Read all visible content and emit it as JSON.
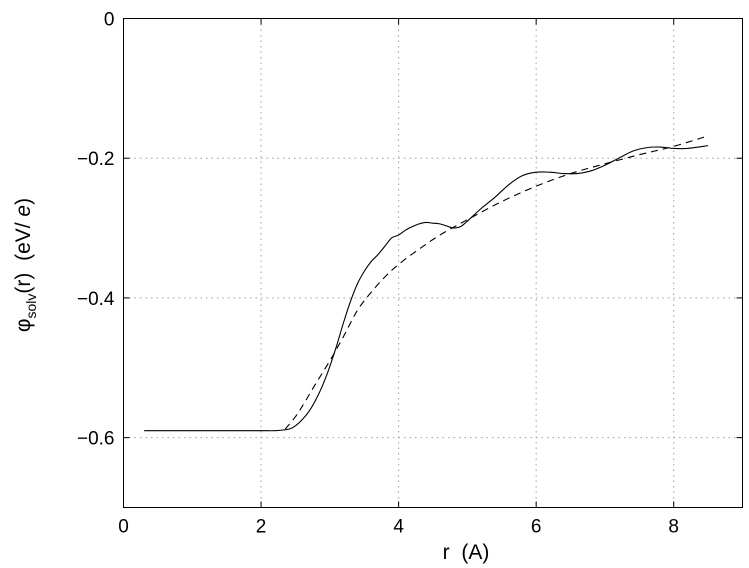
{
  "chart_data": {
    "type": "line",
    "xlabel": "r  (A)",
    "ylabel": {
      "prefix": "φ",
      "subscript": "solv",
      "middle": "(r)  (eV/ ",
      "italic": "e",
      "suffix": ")"
    },
    "xlim": [
      0,
      9
    ],
    "ylim": [
      -0.7,
      0
    ],
    "xticks": [
      0,
      2,
      4,
      6,
      8
    ],
    "yticks": [
      0,
      -0.2,
      -0.4,
      -0.6
    ],
    "xtick_labels": [
      "0",
      "2",
      "4",
      "6",
      "8"
    ],
    "ytick_labels": [
      "0",
      "−0.2",
      "−0.4",
      "−0.6"
    ],
    "grid": true,
    "series": [
      {
        "style": "solid",
        "x": [
          0.3,
          1.0,
          1.5,
          2.0,
          2.2,
          2.4,
          2.5,
          2.6,
          2.7,
          2.8,
          2.9,
          3.0,
          3.1,
          3.2,
          3.3,
          3.4,
          3.5,
          3.6,
          3.7,
          3.8,
          3.9,
          4.0,
          4.1,
          4.2,
          4.3,
          4.4,
          4.5,
          4.6,
          4.7,
          4.8,
          4.9,
          5.0,
          5.2,
          5.4,
          5.6,
          5.8,
          6.0,
          6.2,
          6.4,
          6.6,
          6.8,
          7.0,
          7.2,
          7.4,
          7.6,
          7.8,
          8.0,
          8.2,
          8.5
        ],
        "y": [
          -0.59,
          -0.59,
          -0.59,
          -0.59,
          -0.59,
          -0.588,
          -0.583,
          -0.574,
          -0.562,
          -0.545,
          -0.524,
          -0.498,
          -0.468,
          -0.435,
          -0.405,
          -0.38,
          -0.362,
          -0.348,
          -0.338,
          -0.326,
          -0.314,
          -0.31,
          -0.303,
          -0.298,
          -0.294,
          -0.292,
          -0.293,
          -0.294,
          -0.297,
          -0.3,
          -0.298,
          -0.29,
          -0.272,
          -0.256,
          -0.238,
          -0.225,
          -0.22,
          -0.22,
          -0.222,
          -0.222,
          -0.218,
          -0.21,
          -0.2,
          -0.19,
          -0.185,
          -0.184,
          -0.186,
          -0.186,
          -0.182
        ]
      },
      {
        "style": "dashed",
        "x": [
          2.35,
          2.5,
          2.6,
          2.8,
          3.0,
          3.2,
          3.4,
          3.6,
          3.8,
          4.0,
          4.3,
          4.6,
          5.0,
          5.5,
          6.0,
          6.5,
          7.0,
          7.5,
          8.0,
          8.5
        ],
        "y": [
          -0.588,
          -0.57,
          -0.555,
          -0.522,
          -0.49,
          -0.455,
          -0.418,
          -0.392,
          -0.37,
          -0.352,
          -0.33,
          -0.31,
          -0.288,
          -0.262,
          -0.24,
          -0.222,
          -0.208,
          -0.195,
          -0.183,
          -0.168
        ]
      }
    ]
  }
}
